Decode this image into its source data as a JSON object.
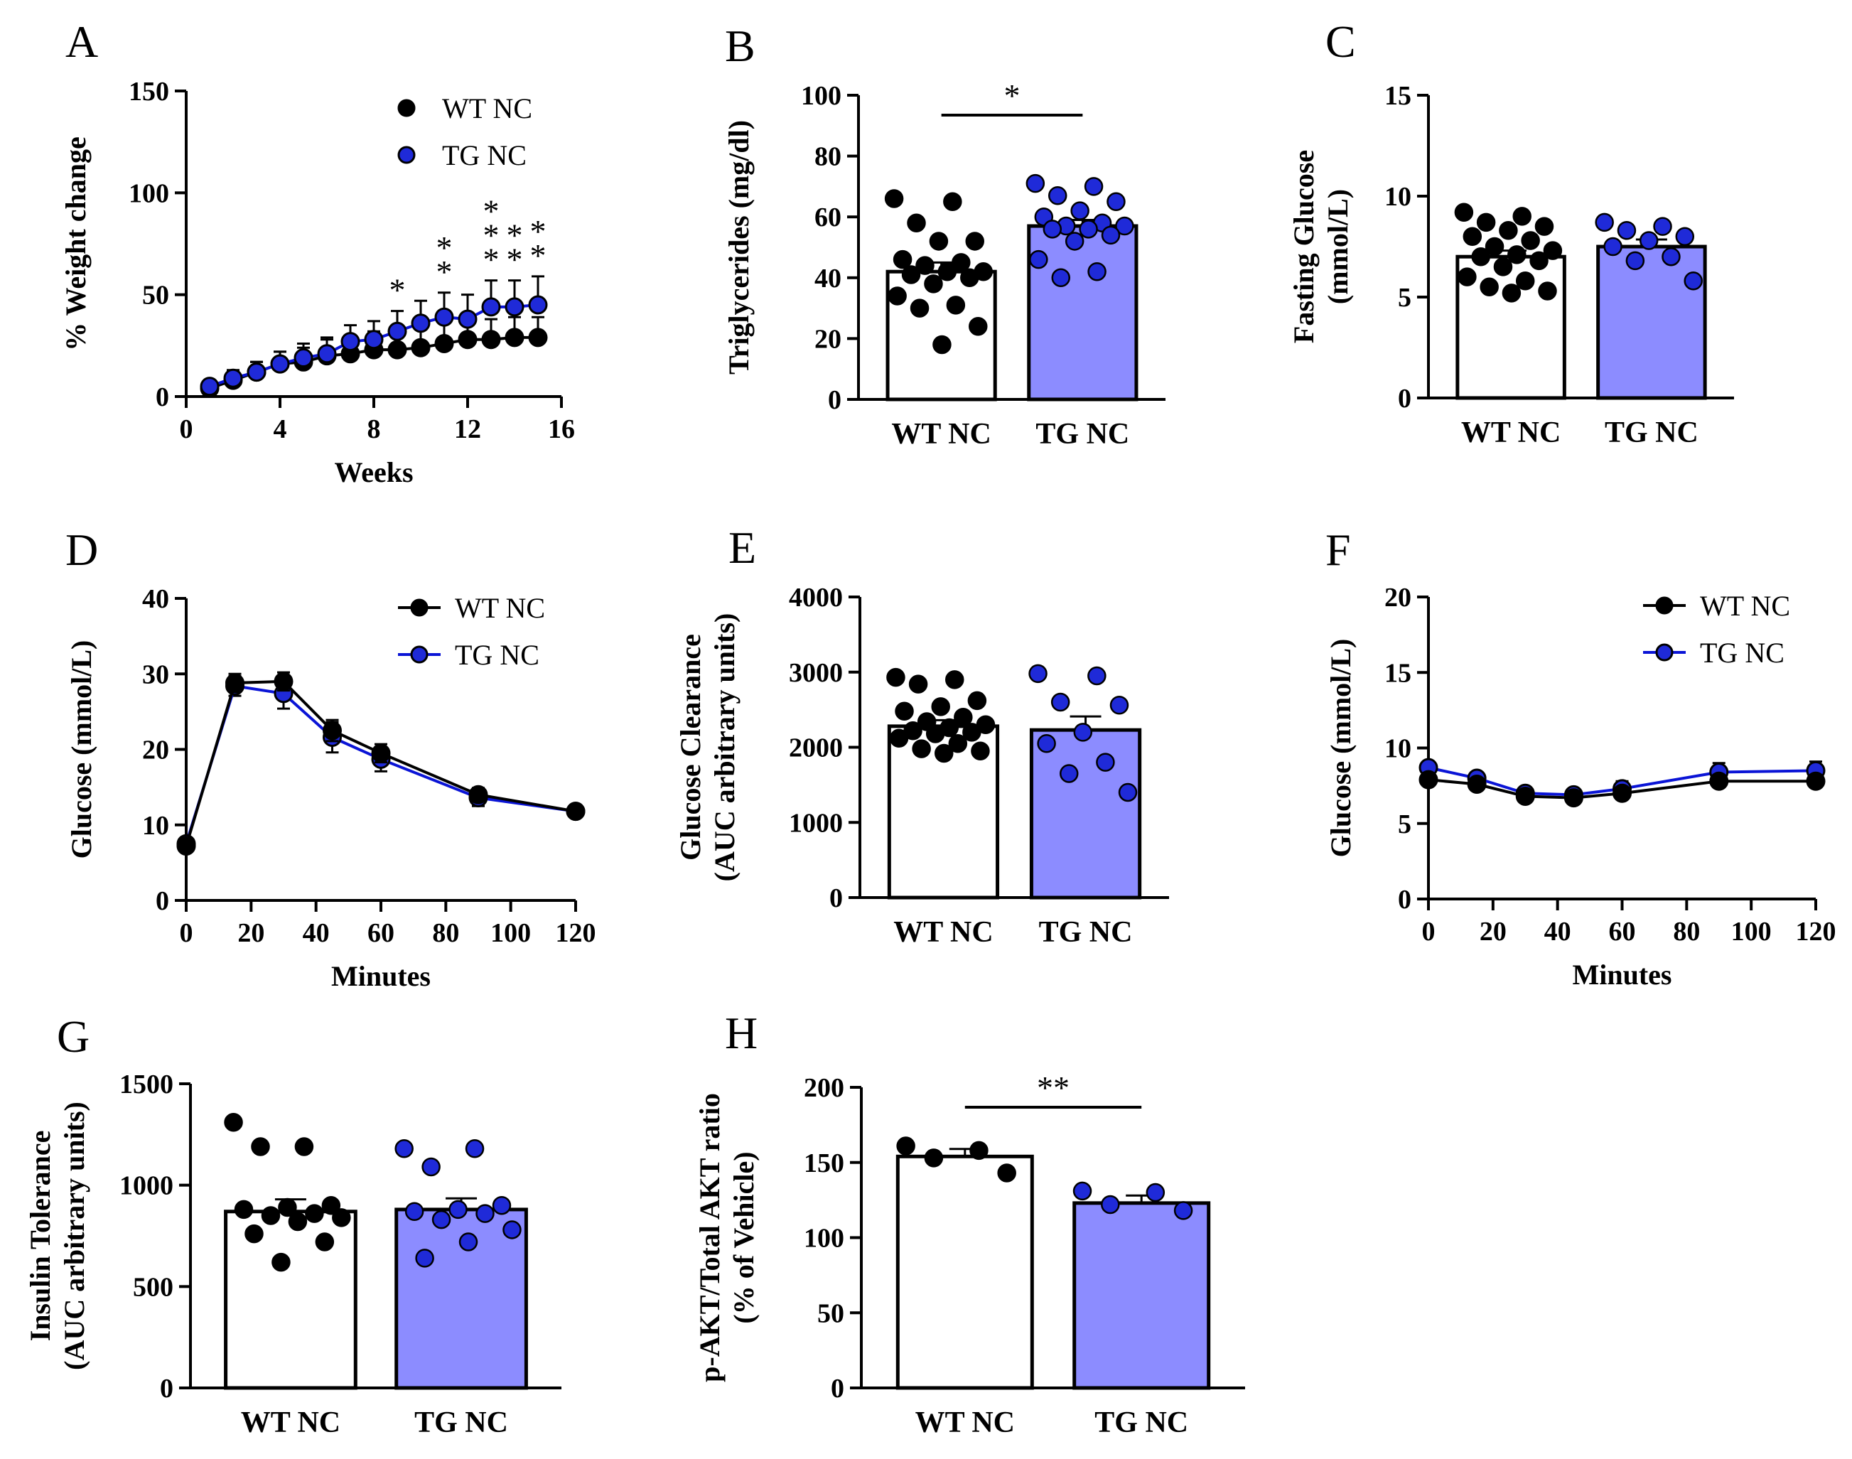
{
  "colors": {
    "wt": "#000000",
    "tg": "#0a14d6",
    "tg_bar": "#8c8cff",
    "tg_dot": "#1f2ad8",
    "line": "#000000"
  },
  "chart_data": [
    {
      "panel": "A",
      "type": "line",
      "xlabel": "Weeks",
      "ylabel": "% Weight change",
      "xlim": [
        0,
        16
      ],
      "ylim": [
        0,
        150
      ],
      "xticks": [
        "0",
        "4",
        "8",
        "12",
        "16"
      ],
      "yticks": [
        "0",
        "50",
        "100",
        "150"
      ],
      "legend": [
        "WT NC",
        "TG NC"
      ],
      "legend_position": "top-right",
      "x": [
        1,
        2,
        3,
        4,
        5,
        6,
        7,
        8,
        9,
        10,
        11,
        12,
        13,
        14,
        15
      ],
      "series": [
        {
          "name": "WT NC",
          "values": [
            4,
            8,
            12,
            16,
            17,
            20,
            21,
            23,
            23,
            24,
            26,
            28,
            28,
            29,
            29
          ],
          "err": [
            3,
            4,
            5,
            6,
            7,
            8,
            9,
            9,
            9,
            9,
            10,
            10,
            10,
            10,
            10
          ]
        },
        {
          "name": "TG NC",
          "values": [
            5,
            9,
            12,
            16,
            19,
            21,
            27,
            28,
            32,
            36,
            39,
            38,
            44,
            44,
            45
          ],
          "err": [
            3,
            4,
            5,
            6,
            7,
            8,
            8,
            9,
            10,
            11,
            12,
            12,
            13,
            13,
            14
          ]
        }
      ],
      "annotations": [
        {
          "x": 9,
          "text": "*"
        },
        {
          "x": 11,
          "text": "*"
        },
        {
          "x": 11,
          "text": "*"
        },
        {
          "x": 13,
          "text": "*"
        },
        {
          "x": 13,
          "text": "*"
        },
        {
          "x": 13,
          "text": "*"
        },
        {
          "x": 14,
          "text": "*"
        },
        {
          "x": 14,
          "text": "*"
        },
        {
          "x": 15,
          "text": "*"
        },
        {
          "x": 15,
          "text": "*"
        }
      ]
    },
    {
      "panel": "B",
      "type": "bar",
      "ylabel": "Triglycerides (mg/dl)",
      "ylim": [
        0,
        100
      ],
      "yticks": [
        "0",
        "20",
        "40",
        "60",
        "80",
        "100"
      ],
      "categories": [
        "WT NC",
        "TG NC"
      ],
      "values": [
        42,
        57
      ],
      "sem": [
        3,
        2
      ],
      "points": [
        [
          66,
          65,
          58,
          52,
          52,
          46,
          45,
          44,
          42,
          42,
          41,
          40,
          38,
          34,
          31,
          30,
          24,
          18
        ],
        [
          71,
          70,
          67,
          65,
          62,
          60,
          58,
          57,
          57,
          56,
          56,
          54,
          52,
          46,
          42,
          40
        ]
      ],
      "significance": "*"
    },
    {
      "panel": "C",
      "type": "bar",
      "ylabel": "Fasting Glucose (mmol/L)",
      "ylim": [
        0,
        15
      ],
      "yticks": [
        "0",
        "5",
        "10",
        "15"
      ],
      "categories": [
        "WT NC",
        "TG NC"
      ],
      "values": [
        7.0,
        7.5
      ],
      "sem": [
        0.3,
        0.35
      ],
      "points": [
        [
          9.2,
          9.0,
          8.7,
          8.5,
          8.3,
          8.0,
          7.8,
          7.5,
          7.3,
          7.1,
          7.0,
          6.8,
          6.5,
          6.0,
          5.8,
          5.5,
          5.3,
          5.2
        ],
        [
          8.7,
          8.5,
          8.3,
          8.0,
          7.8,
          7.5,
          7.0,
          6.8,
          5.8
        ]
      ]
    },
    {
      "panel": "D",
      "type": "line",
      "xlabel": "Minutes",
      "ylabel": "Glucose (mmol/L)",
      "xlim": [
        0,
        120
      ],
      "ylim": [
        0,
        40
      ],
      "xticks": [
        "0",
        "20",
        "40",
        "60",
        "80",
        "100",
        "120"
      ],
      "yticks": [
        "0",
        "10",
        "20",
        "30",
        "40"
      ],
      "legend": [
        "WT NC",
        "TG NC"
      ],
      "legend_position": "top-right",
      "x": [
        0,
        15,
        30,
        45,
        60,
        90,
        120
      ],
      "series": [
        {
          "name": "WT NC",
          "values": [
            7.2,
            28.8,
            29.0,
            22.5,
            19.5,
            14.0,
            11.8
          ],
          "err": [
            0.5,
            1.2,
            1.2,
            1.4,
            1.2,
            0.9,
            0.5
          ]
        },
        {
          "name": "TG NC",
          "values": [
            7.5,
            28.4,
            27.4,
            21.6,
            18.7,
            13.6,
            11.8
          ],
          "err": [
            0.6,
            1.3,
            2.0,
            2.0,
            1.6,
            1.1,
            0.6
          ]
        }
      ]
    },
    {
      "panel": "E",
      "type": "bar",
      "ylabel": "Glucose Clearance (AUC arbitrary units)",
      "ylim": [
        0,
        4000
      ],
      "yticks": [
        "0",
        "1000",
        "2000",
        "3000",
        "4000"
      ],
      "categories": [
        "WT NC",
        "TG NC"
      ],
      "values": [
        2280,
        2230
      ],
      "sem": [
        80,
        180
      ],
      "points": [
        [
          2930,
          2900,
          2840,
          2620,
          2540,
          2480,
          2400,
          2340,
          2300,
          2260,
          2220,
          2200,
          2180,
          2120,
          2050,
          1980,
          1950,
          1920
        ],
        [
          2980,
          2950,
          2600,
          2560,
          2200,
          2050,
          1800,
          1650,
          1400
        ]
      ]
    },
    {
      "panel": "F",
      "type": "line",
      "xlabel": "Minutes",
      "ylabel": "Glucose (mmol/L)",
      "xlim": [
        0,
        120
      ],
      "ylim": [
        0,
        20
      ],
      "xticks": [
        "0",
        "20",
        "40",
        "60",
        "80",
        "100",
        "120"
      ],
      "yticks": [
        "0",
        "5",
        "10",
        "15",
        "20"
      ],
      "legend": [
        "WT NC",
        "TG NC"
      ],
      "legend_position": "top-right",
      "x": [
        0,
        15,
        30,
        45,
        60,
        90,
        120
      ],
      "series": [
        {
          "name": "WT NC",
          "values": [
            7.9,
            7.6,
            6.8,
            6.7,
            7.0,
            7.8,
            7.8
          ],
          "err": [
            0.4,
            0.4,
            0.4,
            0.4,
            0.4,
            0.4,
            0.4
          ]
        },
        {
          "name": "TG NC",
          "values": [
            8.7,
            8.0,
            7.0,
            6.9,
            7.3,
            8.4,
            8.5
          ],
          "err": [
            0.4,
            0.4,
            0.4,
            0.4,
            0.5,
            0.6,
            0.6
          ]
        }
      ]
    },
    {
      "panel": "G",
      "type": "bar",
      "ylabel": "Insulin Tolerance (AUC arbitrary units)",
      "ylim": [
        0,
        1500
      ],
      "yticks": [
        "0",
        "500",
        "1000",
        "1500"
      ],
      "categories": [
        "WT NC",
        "TG NC"
      ],
      "values": [
        870,
        880
      ],
      "sem": [
        60,
        55
      ],
      "points": [
        [
          1310,
          1190,
          1190,
          900,
          890,
          880,
          860,
          850,
          840,
          820,
          760,
          720,
          620
        ],
        [
          1180,
          1180,
          1090,
          900,
          880,
          870,
          860,
          830,
          780,
          720,
          640
        ]
      ]
    },
    {
      "panel": "H",
      "type": "bar",
      "ylabel": "p-AKT/Total AKT ratio (% of Vehicle)",
      "ylim": [
        0,
        200
      ],
      "yticks": [
        "0",
        "50",
        "100",
        "150",
        "200"
      ],
      "categories": [
        "WT NC",
        "TG NC"
      ],
      "values": [
        154,
        123
      ],
      "sem": [
        5,
        5
      ],
      "points": [
        [
          161,
          158,
          153,
          143
        ],
        [
          131,
          130,
          122,
          118
        ]
      ],
      "significance": "**"
    }
  ]
}
